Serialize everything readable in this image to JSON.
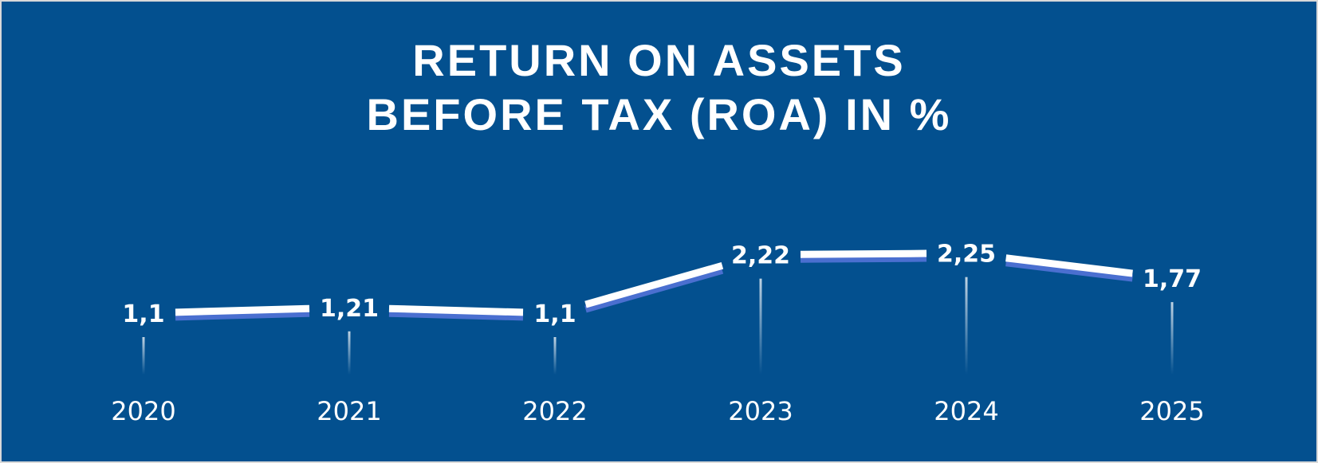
{
  "chart_data": {
    "type": "line",
    "title_line1": "RETURN ON ASSETS",
    "title_line2": "BEFORE TAX (ROA) IN %",
    "categories": [
      "2020",
      "2021",
      "2022",
      "2023",
      "2024",
      "2025"
    ],
    "values": [
      1.1,
      1.21,
      1.1,
      2.22,
      2.25,
      1.77
    ],
    "value_labels": [
      "1,1",
      "1,21",
      "1,1",
      "2,22",
      "2,25",
      "1,77"
    ],
    "xlabel": "",
    "ylabel": "",
    "grid": false,
    "legend": "none",
    "colors": {
      "background": "#03508f",
      "line": "#ffffff",
      "line_shadow": "#4a6fd0",
      "text": "#ffffff"
    }
  }
}
